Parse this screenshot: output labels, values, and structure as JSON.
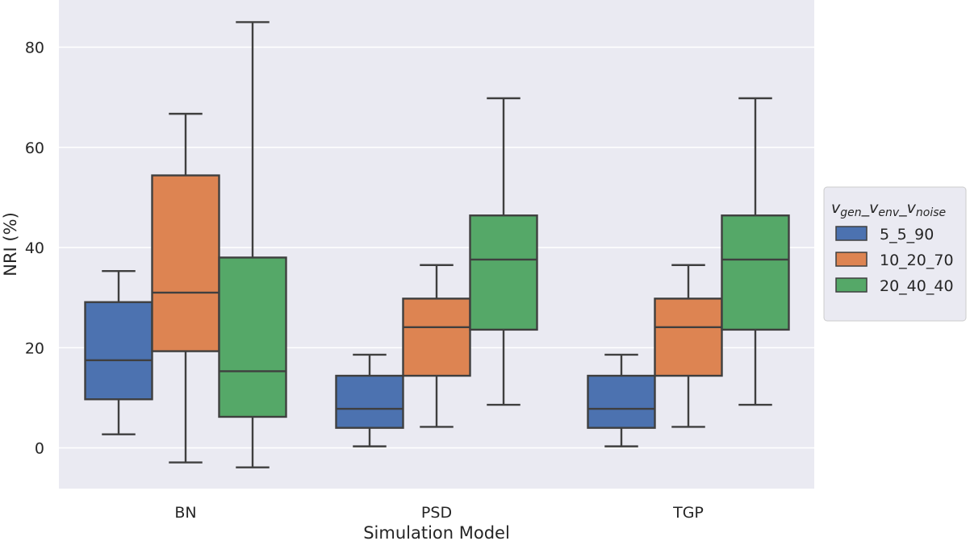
{
  "chart_data": {
    "type": "box",
    "xlabel": "Simulation Model",
    "ylabel": "NRI (%)",
    "ylim": [
      -8,
      89
    ],
    "yticks": [
      0,
      20,
      40,
      60,
      80
    ],
    "categories": [
      "BN",
      "PSD",
      "TGP"
    ],
    "legend": {
      "placement": "right",
      "title": {
        "main": "v",
        "sub1": "gen",
        "sep1": "_",
        "v2": "v",
        "sub2": "env",
        "sep2": "_",
        "v3": "v",
        "sub3": "noise"
      }
    },
    "series": [
      {
        "name": "5_5_90",
        "color": "#4c72b0",
        "boxes": [
          {
            "whisker_low": 2.7,
            "q1": 9.7,
            "median": 17.5,
            "q3": 29.1,
            "whisker_high": 35.3
          },
          {
            "whisker_low": 0.3,
            "q1": 4.0,
            "median": 7.8,
            "q3": 14.4,
            "whisker_high": 18.6
          },
          {
            "whisker_low": 0.3,
            "q1": 4.0,
            "median": 7.8,
            "q3": 14.4,
            "whisker_high": 18.6
          }
        ]
      },
      {
        "name": "10_20_70",
        "color": "#dd8452",
        "boxes": [
          {
            "whisker_low": -2.9,
            "q1": 19.3,
            "median": 31.0,
            "q3": 54.4,
            "whisker_high": 66.7
          },
          {
            "whisker_low": 4.2,
            "q1": 14.4,
            "median": 24.1,
            "q3": 29.8,
            "whisker_high": 36.5
          },
          {
            "whisker_low": 4.2,
            "q1": 14.4,
            "median": 24.1,
            "q3": 29.8,
            "whisker_high": 36.5
          }
        ]
      },
      {
        "name": "20_40_40",
        "color": "#55a868",
        "boxes": [
          {
            "whisker_low": -3.9,
            "q1": 6.2,
            "median": 15.3,
            "q3": 38.0,
            "whisker_high": 85.0
          },
          {
            "whisker_low": 8.6,
            "q1": 23.6,
            "median": 37.6,
            "q3": 46.4,
            "whisker_high": 69.8
          },
          {
            "whisker_low": 8.6,
            "q1": 23.6,
            "median": 37.6,
            "q3": 46.4,
            "whisker_high": 69.8
          }
        ]
      }
    ]
  }
}
